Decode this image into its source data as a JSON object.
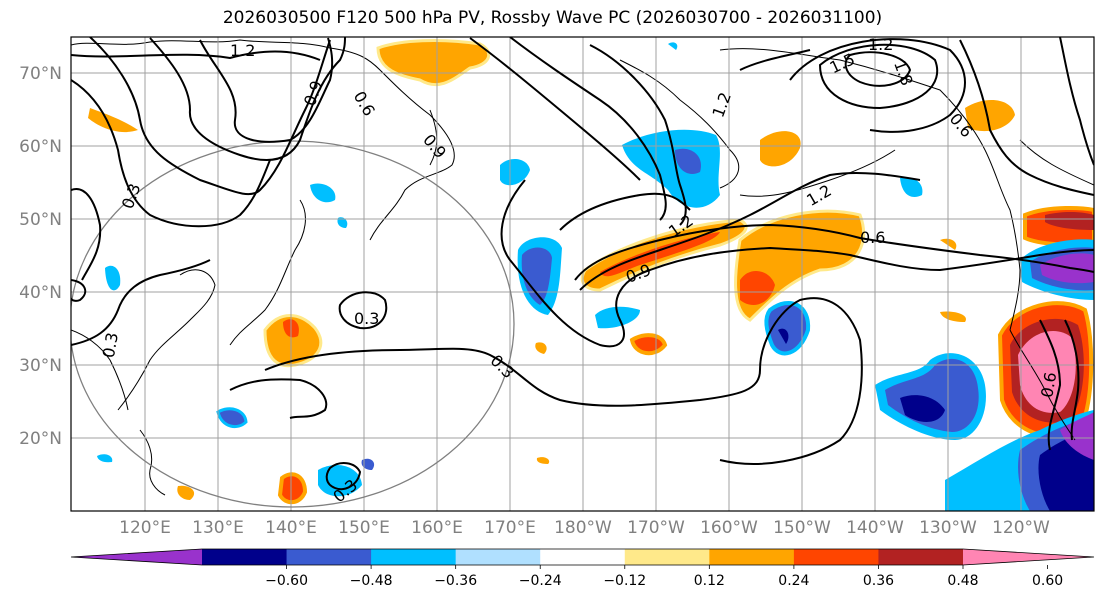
{
  "title": "2026030500 F120 500 hPa PV, Rossby Wave PC (2026030700 - 2026031100)",
  "map": {
    "lat_ticks": [
      "70°N",
      "60°N",
      "50°N",
      "40°N",
      "30°N",
      "20°N"
    ],
    "lon_ticks": [
      "120°E",
      "130°E",
      "140°E",
      "150°E",
      "160°E",
      "170°E",
      "180°W",
      "170°W",
      "160°W",
      "150°W",
      "140°W",
      "130°W",
      "120°W"
    ],
    "extent": {
      "lon_min": 113,
      "lon_max": 253,
      "lat_min": 10,
      "lat_max": 75
    },
    "contour_labels": [
      "1.2",
      "0.9",
      "0.6",
      "0.9",
      "0.3",
      "0.3",
      "0.3",
      "0.3",
      "0.3",
      "1.2",
      "0.9",
      "1.2",
      "0.6",
      "1.5",
      "1.2",
      "1.8",
      "0.6",
      "1.2",
      "0.6"
    ]
  },
  "colorbar": {
    "ticks": [
      "−0.60",
      "−0.48",
      "−0.36",
      "−0.24",
      "−0.12",
      "0.12",
      "0.24",
      "0.36",
      "0.48",
      "0.60"
    ],
    "colors": [
      "#9932cc",
      "#00008b",
      "#3a5bd0",
      "#00bfff",
      "#b0e0ff",
      "#ffffff",
      "#ffe98a",
      "#ffa500",
      "#ff4500",
      "#b22222",
      "#ff85b3"
    ]
  }
}
